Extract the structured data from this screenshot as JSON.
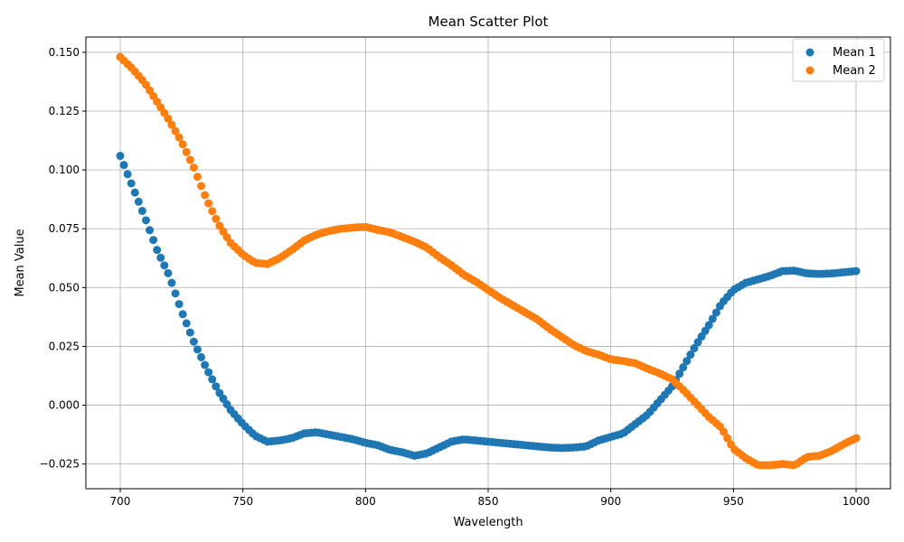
{
  "chart_data": {
    "type": "scatter",
    "title": "Mean Scatter Plot",
    "xlabel": "Wavelength",
    "ylabel": "Mean Value",
    "xlim": [
      686,
      1014
    ],
    "ylim": [
      -0.0355,
      0.1565
    ],
    "xticks": [
      700,
      750,
      800,
      850,
      900,
      950,
      1000
    ],
    "yticks": [
      -0.025,
      0.0,
      0.025,
      0.05,
      0.075,
      0.1,
      0.125,
      0.15
    ],
    "xtick_labels": [
      "700",
      "750",
      "800",
      "850",
      "900",
      "950",
      "1000"
    ],
    "ytick_labels": [
      "−0.025",
      "0.000",
      "0.025",
      "0.050",
      "0.075",
      "0.100",
      "0.125",
      "0.150"
    ],
    "grid": true,
    "legend_position": "top-right",
    "x_step": 1.5,
    "series": [
      {
        "name": "Mean 1",
        "color": "#1f77b4",
        "anchors": [
          [
            700,
            0.106
          ],
          [
            705,
            0.093
          ],
          [
            710,
            0.08
          ],
          [
            715,
            0.066
          ],
          [
            720,
            0.055
          ],
          [
            725,
            0.04
          ],
          [
            730,
            0.027
          ],
          [
            735,
            0.016
          ],
          [
            740,
            0.006
          ],
          [
            745,
            -0.002
          ],
          [
            750,
            -0.008
          ],
          [
            755,
            -0.013
          ],
          [
            760,
            -0.0155
          ],
          [
            765,
            -0.015
          ],
          [
            770,
            -0.014
          ],
          [
            775,
            -0.012
          ],
          [
            780,
            -0.0115
          ],
          [
            785,
            -0.0125
          ],
          [
            790,
            -0.0135
          ],
          [
            795,
            -0.0145
          ],
          [
            800,
            -0.016
          ],
          [
            805,
            -0.017
          ],
          [
            810,
            -0.019
          ],
          [
            815,
            -0.02
          ],
          [
            820,
            -0.0215
          ],
          [
            825,
            -0.0205
          ],
          [
            830,
            -0.018
          ],
          [
            835,
            -0.0155
          ],
          [
            840,
            -0.0145
          ],
          [
            845,
            -0.015
          ],
          [
            850,
            -0.0155
          ],
          [
            855,
            -0.016
          ],
          [
            860,
            -0.0165
          ],
          [
            865,
            -0.017
          ],
          [
            870,
            -0.0175
          ],
          [
            875,
            -0.018
          ],
          [
            880,
            -0.0182
          ],
          [
            885,
            -0.018
          ],
          [
            890,
            -0.0175
          ],
          [
            895,
            -0.015
          ],
          [
            900,
            -0.0135
          ],
          [
            905,
            -0.012
          ],
          [
            910,
            -0.008
          ],
          [
            915,
            -0.004
          ],
          [
            920,
            0.002
          ],
          [
            925,
            0.008
          ],
          [
            930,
            0.017
          ],
          [
            935,
            0.026
          ],
          [
            940,
            0.034
          ],
          [
            945,
            0.043
          ],
          [
            950,
            0.049
          ],
          [
            955,
            0.052
          ],
          [
            960,
            0.0535
          ],
          [
            965,
            0.055
          ],
          [
            970,
            0.057
          ],
          [
            975,
            0.0572
          ],
          [
            980,
            0.056
          ],
          [
            985,
            0.0558
          ],
          [
            990,
            0.056
          ],
          [
            995,
            0.0565
          ],
          [
            1000,
            0.057
          ]
        ]
      },
      {
        "name": "Mean 2",
        "color": "#ff7f0e",
        "anchors": [
          [
            700,
            0.148
          ],
          [
            705,
            0.143
          ],
          [
            710,
            0.137
          ],
          [
            715,
            0.129
          ],
          [
            720,
            0.121
          ],
          [
            725,
            0.112
          ],
          [
            730,
            0.101
          ],
          [
            735,
            0.088
          ],
          [
            740,
            0.077
          ],
          [
            745,
            0.069
          ],
          [
            750,
            0.064
          ],
          [
            755,
            0.0605
          ],
          [
            760,
            0.06
          ],
          [
            765,
            0.0625
          ],
          [
            770,
            0.066
          ],
          [
            775,
            0.07
          ],
          [
            780,
            0.0725
          ],
          [
            785,
            0.074
          ],
          [
            790,
            0.075
          ],
          [
            795,
            0.0755
          ],
          [
            800,
            0.0758
          ],
          [
            805,
            0.0745
          ],
          [
            810,
            0.0735
          ],
          [
            815,
            0.0715
          ],
          [
            820,
            0.0695
          ],
          [
            825,
            0.067
          ],
          [
            830,
            0.063
          ],
          [
            835,
            0.0595
          ],
          [
            840,
            0.0555
          ],
          [
            845,
            0.0525
          ],
          [
            850,
            0.049
          ],
          [
            855,
            0.0455
          ],
          [
            860,
            0.0425
          ],
          [
            865,
            0.0395
          ],
          [
            870,
            0.0365
          ],
          [
            875,
            0.0325
          ],
          [
            880,
            0.029
          ],
          [
            885,
            0.0255
          ],
          [
            890,
            0.023
          ],
          [
            895,
            0.0215
          ],
          [
            900,
            0.0195
          ],
          [
            905,
            0.0188
          ],
          [
            910,
            0.0178
          ],
          [
            915,
            0.0155
          ],
          [
            920,
            0.0135
          ],
          [
            925,
            0.011
          ],
          [
            930,
            0.006
          ],
          [
            935,
            0.0005
          ],
          [
            940,
            -0.005
          ],
          [
            945,
            -0.0095
          ],
          [
            950,
            -0.0185
          ],
          [
            955,
            -0.0225
          ],
          [
            960,
            -0.0255
          ],
          [
            965,
            -0.0255
          ],
          [
            970,
            -0.025
          ],
          [
            975,
            -0.0255
          ],
          [
            980,
            -0.022
          ],
          [
            985,
            -0.0215
          ],
          [
            990,
            -0.0195
          ],
          [
            995,
            -0.0165
          ],
          [
            1000,
            -0.014
          ]
        ]
      }
    ]
  }
}
